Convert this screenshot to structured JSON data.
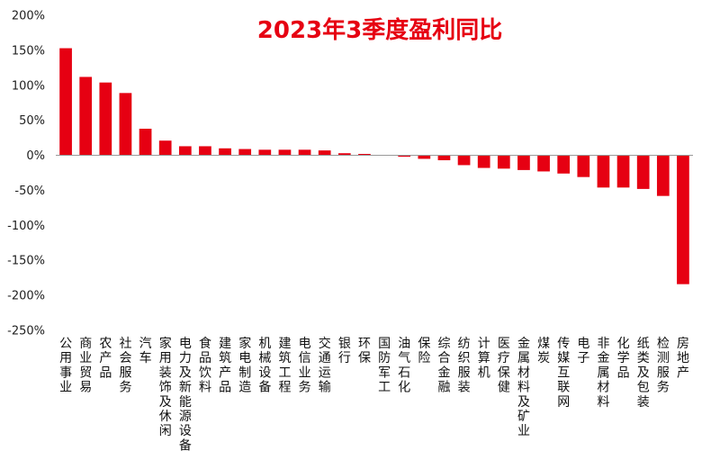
{
  "chart_data": {
    "type": "bar",
    "title": "2023年3季度盈利同比",
    "xlabel": "",
    "ylabel": "",
    "ylim": [
      -250,
      200
    ],
    "yticks": [
      "200%",
      "150%",
      "100%",
      "50%",
      "0%",
      "-50%",
      "-100%",
      "-150%",
      "-200%",
      "-250%"
    ],
    "ytick_values": [
      200,
      150,
      100,
      50,
      0,
      -50,
      -100,
      -150,
      -200,
      -250
    ],
    "grid": false,
    "categories": [
      "公用事业",
      "商业贸易",
      "农产品",
      "社会服务",
      "汽车",
      "家用装饰及休闲",
      "电力及新能源设备",
      "食品饮料",
      "建筑产品",
      "家电制造",
      "机械设备",
      "建筑工程",
      "电信业务",
      "交通运输",
      "银行",
      "环保",
      "国防军工",
      "油气石化",
      "保险",
      "综合金融",
      "纺织服装",
      "计算机",
      "医疗保健",
      "金属材料及矿业",
      "煤炭",
      "传媒互联网",
      "电子",
      "非金属材料",
      "化学品",
      "纸类及包装",
      "检测服务",
      "房地产"
    ],
    "values": [
      153,
      112,
      104,
      89,
      38,
      21,
      13,
      13,
      10,
      9,
      8,
      8,
      8,
      7,
      3,
      2,
      0,
      -2,
      -5,
      -7,
      -14,
      -18,
      -19,
      -21,
      -23,
      -26,
      -31,
      -46,
      -46,
      -48,
      -58,
      -184
    ],
    "colors": {
      "bar": "#e60012",
      "title": "#e60012",
      "axis": "#999999"
    }
  }
}
